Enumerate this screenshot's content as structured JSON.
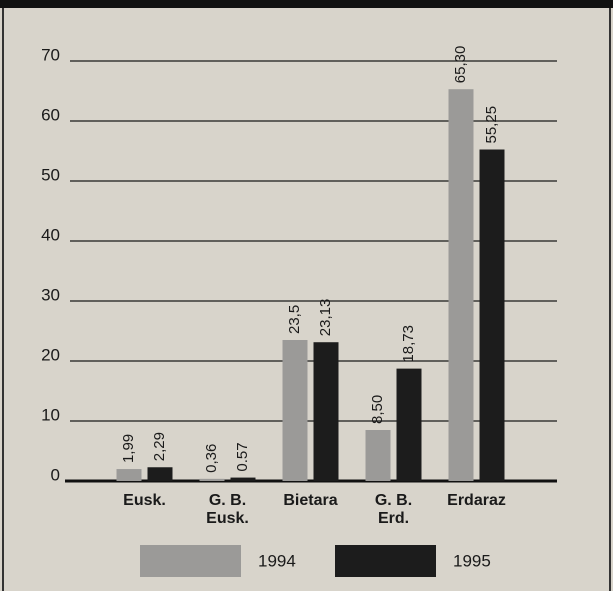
{
  "chart_data": {
    "type": "bar",
    "categories": [
      "Eusk.",
      "G. B.\nEusk.",
      "Bietara",
      "G. B.\nErd.",
      "Erdaraz"
    ],
    "series": [
      {
        "name": "1994",
        "color": "#9b9a98",
        "values": [
          1.99,
          0.36,
          23.5,
          8.5,
          65.3
        ],
        "value_labels": [
          "1,99",
          "0,36",
          "23,5",
          "8,50",
          "65,30"
        ]
      },
      {
        "name": "1995",
        "color": "#1c1c1c",
        "values": [
          2.29,
          0.57,
          23.13,
          18.73,
          55.25
        ],
        "value_labels": [
          "2,29",
          "0.57",
          "23,13",
          "18,73",
          "55,25"
        ]
      }
    ],
    "ylim": [
      0,
      70
    ],
    "yticks": [
      0,
      10,
      20,
      30,
      40,
      50,
      60,
      70
    ],
    "grid": true,
    "legend": "bottom"
  }
}
